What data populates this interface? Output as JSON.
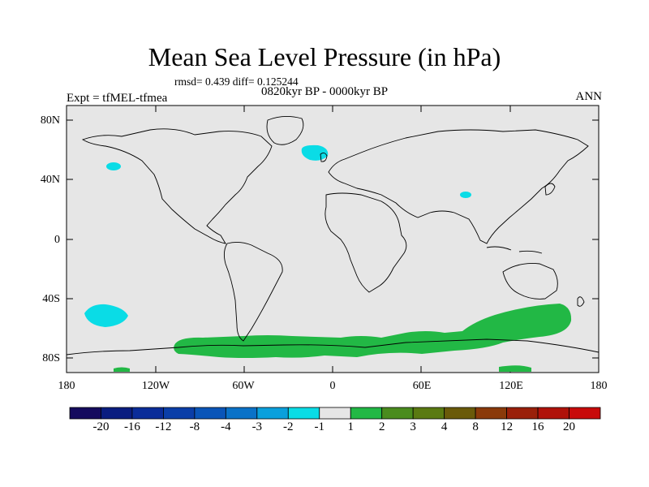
{
  "title": "Mean Sea Level Pressure (in hPa)",
  "stats": "rmsd= 0.439 diff= 0.125244",
  "experiment": "Expt = tfMEL-tfmea",
  "period": "0820kyr BP - 0000kyr BP",
  "season": "ANN",
  "lat_ticks": [
    "80N",
    "40N",
    "0",
    "40S",
    "80S"
  ],
  "lon_ticks": [
    "180",
    "120W",
    "60W",
    "0",
    "60E",
    "120E",
    "180"
  ],
  "colorbar": {
    "labels": [
      "-20",
      "-16",
      "-12",
      "-8",
      "-4",
      "-3",
      "-2",
      "-1",
      "1",
      "2",
      "3",
      "4",
      "8",
      "12",
      "16",
      "20"
    ],
    "colors": [
      "#150b5e",
      "#0a1d80",
      "#0a2c99",
      "#0a3ea8",
      "#0a55b8",
      "#0a72c8",
      "#0aa0dc",
      "#0adce6",
      "#e6e6e6",
      "#22b845",
      "#4a8c1e",
      "#5a7a12",
      "#6a5a0a",
      "#8a3a0a",
      "#9a200a",
      "#b0120a",
      "#c80a0a"
    ]
  },
  "colors": {
    "background": "#e6e6e6",
    "negative": "#0adce6",
    "positive": "#22b845"
  }
}
